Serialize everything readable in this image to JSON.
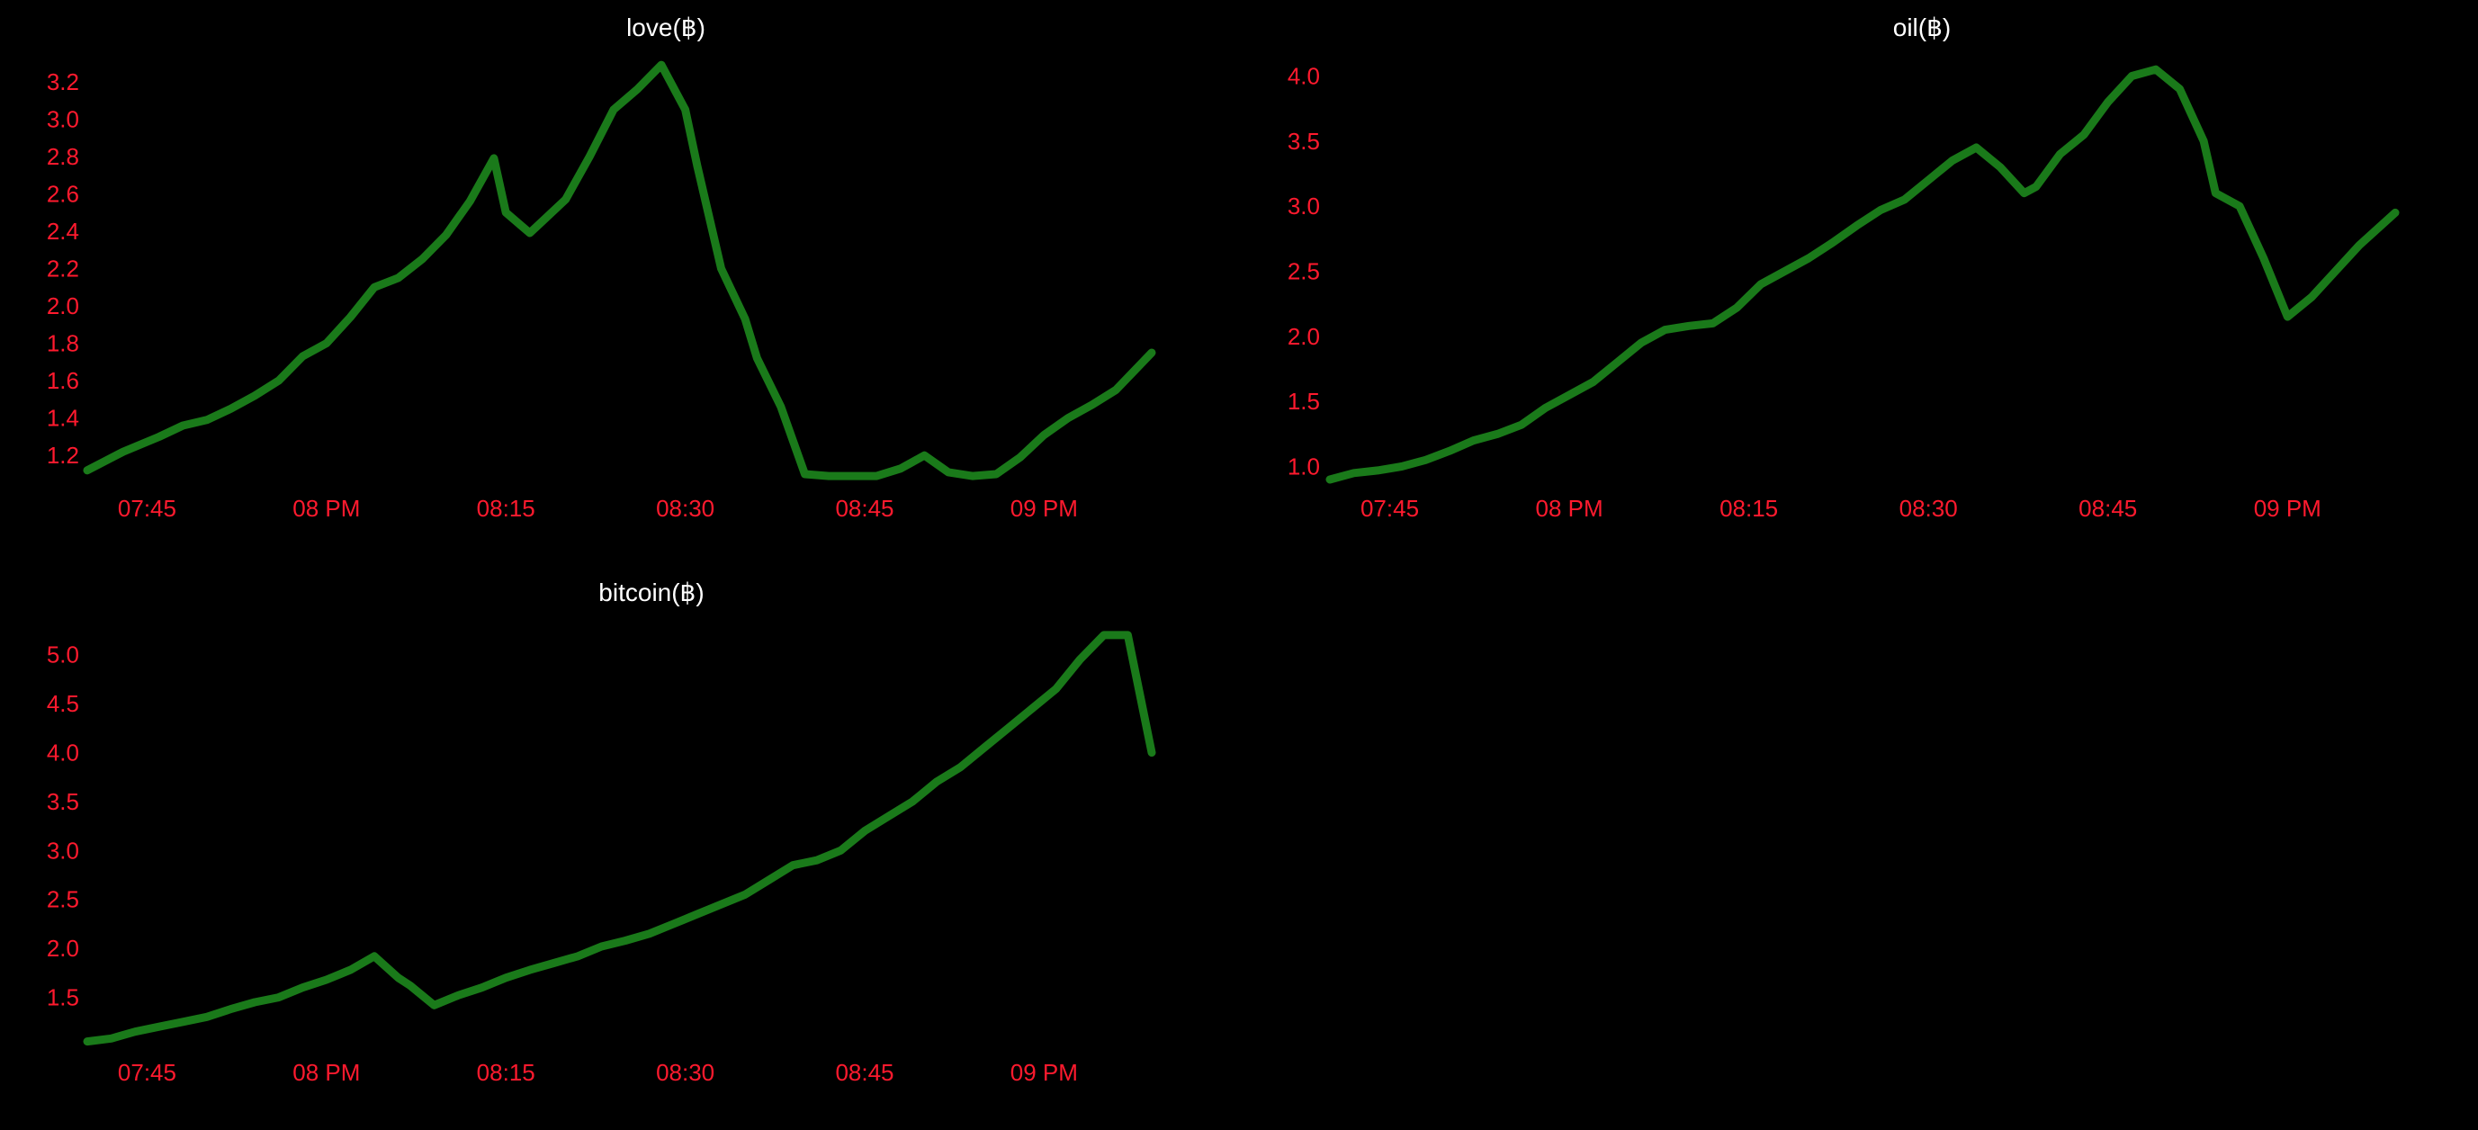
{
  "chart_data": [
    {
      "type": "line",
      "title": "love(฿)",
      "xlabel": "",
      "ylabel": "",
      "x_ticks": [
        "07:45",
        "08 PM",
        "08:15",
        "08:30",
        "08:45",
        "09 PM"
      ],
      "y_ticks": [
        "1.2",
        "1.4",
        "1.6",
        "1.8",
        "2.0",
        "2.2",
        "2.4",
        "2.6",
        "2.8",
        "3.0",
        "3.2"
      ],
      "xlim": [
        "19:40",
        "21:09"
      ],
      "ylim": [
        1.1,
        3.3
      ],
      "grid": false,
      "colors": {
        "line": "#1a7a1a",
        "ticks": "#ff1a2e",
        "title": "#ffffff",
        "background": "#000000"
      },
      "series": [
        {
          "x": [
            "19:40",
            "19:43",
            "19:46",
            "19:48",
            "19:50",
            "19:52",
            "19:54",
            "19:56",
            "19:58",
            "20:00",
            "20:02",
            "20:04",
            "20:06",
            "20:08",
            "20:10",
            "20:12",
            "20:14",
            "20:15",
            "20:17",
            "20:18",
            "20:20",
            "20:22",
            "20:24",
            "20:26",
            "20:28",
            "20:30",
            "20:31",
            "20:33",
            "20:35",
            "20:36",
            "20:38",
            "20:39",
            "20:40",
            "20:42",
            "20:44",
            "20:46",
            "20:48",
            "20:50",
            "20:52",
            "20:54",
            "20:56",
            "20:58",
            "21:00",
            "21:02",
            "21:04",
            "21:06",
            "21:09"
          ],
          "y": [
            1.12,
            1.22,
            1.3,
            1.36,
            1.39,
            1.45,
            1.52,
            1.6,
            1.73,
            1.8,
            1.94,
            2.1,
            2.15,
            2.25,
            2.38,
            2.56,
            2.79,
            2.5,
            2.39,
            2.45,
            2.57,
            2.8,
            3.05,
            3.16,
            3.29,
            3.05,
            2.75,
            2.2,
            1.93,
            1.72,
            1.46,
            1.28,
            1.1,
            1.09,
            1.09,
            1.09,
            1.13,
            1.2,
            1.11,
            1.09,
            1.1,
            1.19,
            1.31,
            1.4,
            1.47,
            1.55,
            1.75
          ]
        }
      ]
    },
    {
      "type": "line",
      "title": "oil(฿)",
      "xlabel": "",
      "ylabel": "",
      "x_ticks": [
        "07:45",
        "08 PM",
        "08:15",
        "08:30",
        "08:45",
        "09 PM"
      ],
      "y_ticks": [
        "1.0",
        "1.5",
        "2.0",
        "2.5",
        "3.0",
        "3.5",
        "4.0"
      ],
      "xlim": [
        "19:40",
        "21:09"
      ],
      "ylim": [
        0.9,
        4.1
      ],
      "grid": false,
      "colors": {
        "line": "#1a7a1a",
        "ticks": "#ff1a2e",
        "title": "#ffffff",
        "background": "#000000"
      },
      "series": [
        {
          "x": [
            "19:40",
            "19:42",
            "19:44",
            "19:46",
            "19:48",
            "19:50",
            "19:52",
            "19:54",
            "19:56",
            "19:58",
            "20:00",
            "20:02",
            "20:04",
            "20:06",
            "20:08",
            "20:10",
            "20:12",
            "20:14",
            "20:16",
            "20:18",
            "20:20",
            "20:22",
            "20:24",
            "20:26",
            "20:28",
            "20:30",
            "20:32",
            "20:34",
            "20:36",
            "20:38",
            "20:39",
            "20:41",
            "20:43",
            "20:45",
            "20:47",
            "20:49",
            "20:51",
            "20:53",
            "20:54",
            "20:56",
            "20:58",
            "21:00",
            "21:02",
            "21:04",
            "21:06",
            "21:09"
          ],
          "y": [
            0.9,
            0.95,
            0.97,
            1.0,
            1.05,
            1.12,
            1.2,
            1.25,
            1.32,
            1.45,
            1.55,
            1.65,
            1.8,
            1.95,
            2.05,
            2.08,
            2.1,
            2.22,
            2.4,
            2.5,
            2.6,
            2.72,
            2.85,
            2.97,
            3.05,
            3.2,
            3.35,
            3.45,
            3.3,
            3.1,
            3.15,
            3.4,
            3.55,
            3.8,
            4.0,
            4.05,
            3.9,
            3.5,
            3.1,
            3.0,
            2.6,
            2.15,
            2.3,
            2.5,
            2.7,
            2.95
          ]
        }
      ]
    },
    {
      "type": "line",
      "title": "bitcoin(฿)",
      "xlabel": "",
      "ylabel": "",
      "x_ticks": [
        "07:45",
        "08 PM",
        "08:15",
        "08:30",
        "08:45",
        "09 PM"
      ],
      "y_ticks": [
        "1.5",
        "2.0",
        "2.5",
        "3.0",
        "3.5",
        "4.0",
        "4.5",
        "5.0"
      ],
      "xlim": [
        "19:40",
        "21:09"
      ],
      "ylim": [
        1.0,
        5.3
      ],
      "grid": false,
      "colors": {
        "line": "#1a7a1a",
        "ticks": "#ff1a2e",
        "title": "#ffffff",
        "background": "#000000"
      },
      "series": [
        {
          "x": [
            "19:40",
            "19:42",
            "19:44",
            "19:46",
            "19:48",
            "19:50",
            "19:52",
            "19:54",
            "19:56",
            "19:58",
            "20:00",
            "20:02",
            "20:04",
            "20:06",
            "20:07",
            "20:09",
            "20:11",
            "20:13",
            "20:15",
            "20:17",
            "20:19",
            "20:21",
            "20:23",
            "20:25",
            "20:27",
            "20:29",
            "20:31",
            "20:33",
            "20:35",
            "20:37",
            "20:39",
            "20:41",
            "20:43",
            "20:45",
            "20:47",
            "20:49",
            "20:51",
            "20:53",
            "20:55",
            "20:57",
            "20:59",
            "21:01",
            "21:03",
            "21:05",
            "21:07",
            "21:08",
            "21:09"
          ],
          "y": [
            1.05,
            1.08,
            1.15,
            1.2,
            1.25,
            1.3,
            1.38,
            1.45,
            1.5,
            1.6,
            1.68,
            1.78,
            1.92,
            1.7,
            1.62,
            1.42,
            1.52,
            1.6,
            1.7,
            1.78,
            1.85,
            1.92,
            2.02,
            2.08,
            2.15,
            2.25,
            2.35,
            2.45,
            2.55,
            2.7,
            2.85,
            2.9,
            3.0,
            3.2,
            3.35,
            3.5,
            3.7,
            3.85,
            4.05,
            4.25,
            4.45,
            4.65,
            4.95,
            5.2,
            5.2,
            4.6,
            4.0
          ]
        }
      ]
    }
  ]
}
